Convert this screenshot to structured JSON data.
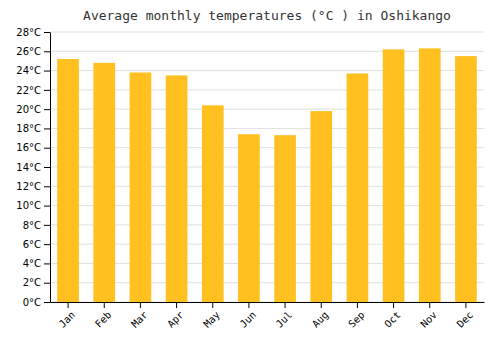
{
  "chart_data": {
    "type": "bar",
    "title": "Average monthly temperatures (°C ) in Oshikango",
    "categories": [
      "Jan",
      "Feb",
      "Mar",
      "Apr",
      "May",
      "Jun",
      "Jul",
      "Aug",
      "Sep",
      "Oct",
      "Nov",
      "Dec"
    ],
    "values": [
      25.2,
      24.8,
      23.8,
      23.5,
      20.4,
      17.4,
      17.3,
      19.8,
      23.7,
      26.2,
      26.3,
      25.5
    ],
    "color": "#FFC020",
    "ylim": [
      0,
      28
    ],
    "yticks": [
      {
        "value": 0,
        "label": "0°C"
      },
      {
        "value": 2,
        "label": "2°C"
      },
      {
        "value": 4,
        "label": "4°C"
      },
      {
        "value": 6,
        "label": "6°C"
      },
      {
        "value": 8,
        "label": "8°C"
      },
      {
        "value": 10,
        "label": "10°C"
      },
      {
        "value": 12,
        "label": "12°C"
      },
      {
        "value": 14,
        "label": "14°C"
      },
      {
        "value": 16,
        "label": "16°C"
      },
      {
        "value": 18,
        "label": "18°C"
      },
      {
        "value": 20,
        "label": "20°C"
      },
      {
        "value": 22,
        "label": "22°C"
      },
      {
        "value": 24,
        "label": "24°C"
      },
      {
        "value": 26,
        "label": "26°C"
      },
      {
        "value": 28,
        "label": "28°C"
      }
    ],
    "grid": true
  }
}
